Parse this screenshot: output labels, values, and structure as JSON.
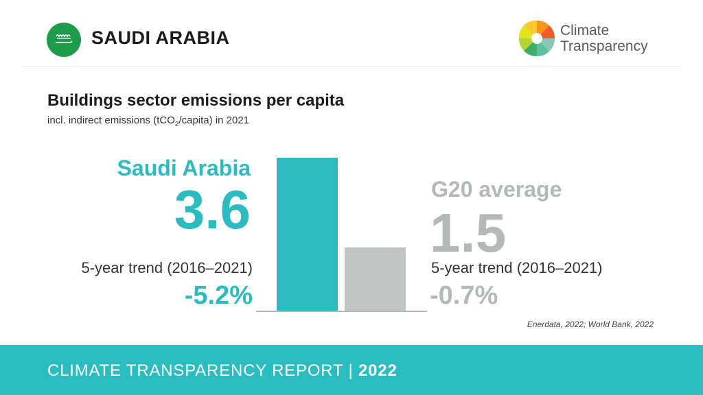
{
  "header": {
    "country": "SAUDI ARABIA",
    "logo_line1": "Climate",
    "logo_line2": "Transparency"
  },
  "title": "Buildings sector emissions per capita",
  "subtitle_pre": "incl. indirect emissions (tCO",
  "subtitle_sub": "2",
  "subtitle_post": "/capita) in 2021",
  "left": {
    "name": "Saudi Arabia",
    "value": "3.6",
    "trend_label": "5-year trend (2016–2021)",
    "trend_value": "-5.2%"
  },
  "right": {
    "name": "G20 average",
    "value": "1.5",
    "trend_label": "5-year trend (2016–2021)",
    "trend_value": "-0.7%"
  },
  "source": "Enerdata, 2022; World Bank, 2022",
  "footer": {
    "text": "CLIMATE TRANSPARENCY REPORT |",
    "year": "2022"
  },
  "colors": {
    "teal": "#2cbcc0",
    "grey": "#c2c4c4",
    "flag_green": "#1e9b4a"
  },
  "chart_data": {
    "type": "bar",
    "categories": [
      "Saudi Arabia",
      "G20 average"
    ],
    "values": [
      3.6,
      1.5
    ],
    "colors": [
      "#2cbcc0",
      "#c2c4c4"
    ],
    "ylim": [
      0,
      3.6
    ]
  }
}
